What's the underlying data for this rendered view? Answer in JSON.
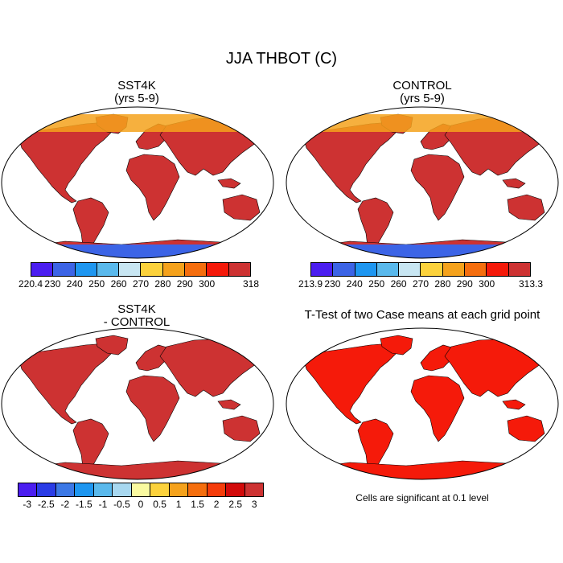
{
  "title": "JJA THBOT (C)",
  "panels": {
    "sst4k": {
      "title_line1": "SST4K",
      "title_line2": "(yrs 5-9)"
    },
    "control": {
      "title_line1": "CONTROL",
      "title_line2": "(yrs 5-9)"
    },
    "diff": {
      "title_line1": "SST4K",
      "title_line2": "- CONTROL"
    },
    "ttest": {
      "title": "T-Test of two Case means at each grid point",
      "note": "Cells are significant at 0.1 level"
    }
  },
  "colorbars": {
    "sst4k": {
      "colors": [
        "#4b1ef0",
        "#3c64e6",
        "#1e96f0",
        "#5ab9ec",
        "#c8e6f2",
        "#fcd23c",
        "#f5a21c",
        "#f56e0e",
        "#f51a0a",
        "#cd3232"
      ],
      "labels": [
        "220.4",
        "230",
        "240",
        "250",
        "260",
        "270",
        "280",
        "290",
        "300",
        "318"
      ]
    },
    "control": {
      "colors": [
        "#4b1ef0",
        "#3c64e6",
        "#1e96f0",
        "#5ab9ec",
        "#c8e6f2",
        "#fcd23c",
        "#f5a21c",
        "#f56e0e",
        "#f51a0a",
        "#cd3232"
      ],
      "labels": [
        "213.9",
        "230",
        "240",
        "250",
        "260",
        "270",
        "280",
        "290",
        "300",
        "313.3"
      ]
    },
    "diff": {
      "colors": [
        "#4b1ef0",
        "#2a3ce6",
        "#3c78e6",
        "#1e96f0",
        "#5ab9ec",
        "#a8d8f0",
        "#fafaa0",
        "#fcd23c",
        "#f5a21c",
        "#f56e0e",
        "#f53c0a",
        "#d20a0a",
        "#cd3232"
      ],
      "labels": [
        "-3",
        "-2.5",
        "-2",
        "-1.5",
        "-1",
        "-0.5",
        "0",
        "0.5",
        "1",
        "1.5",
        "2",
        "2.5",
        "3"
      ]
    }
  }
}
